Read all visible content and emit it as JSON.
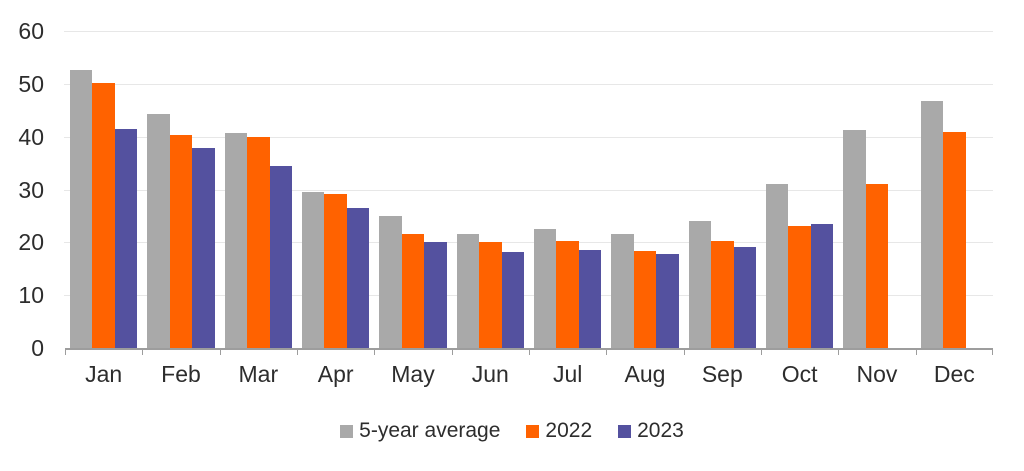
{
  "chart_data": {
    "type": "bar",
    "title": "",
    "categories": [
      "Jan",
      "Feb",
      "Mar",
      "Apr",
      "May",
      "Jun",
      "Jul",
      "Aug",
      "Sep",
      "Oct",
      "Nov",
      "Dec"
    ],
    "series": [
      {
        "name": "5-year average",
        "color": "#a9a9a9",
        "values": [
          52.6,
          44.2,
          40.7,
          29.6,
          24.9,
          21.6,
          22.6,
          21.5,
          24.0,
          31.0,
          41.3,
          46.8
        ]
      },
      {
        "name": "2022",
        "color": "#ff6200",
        "values": [
          50.2,
          40.4,
          40.0,
          29.1,
          21.6,
          20.0,
          20.3,
          18.3,
          20.3,
          23.0,
          31.0,
          40.8
        ]
      },
      {
        "name": "2023",
        "color": "#54519f",
        "values": [
          41.5,
          37.8,
          34.4,
          26.5,
          20.1,
          18.1,
          18.6,
          17.8,
          19.1,
          23.5,
          null,
          null
        ]
      }
    ],
    "y_axis": {
      "min": 0,
      "max": 60,
      "ticks": [
        0,
        10,
        20,
        30,
        40,
        50,
        60
      ]
    },
    "xlabel": "",
    "ylabel": "",
    "grid": "horizontal",
    "legend_position": "bottom"
  },
  "style_colors": {
    "grid": "#e7e7e7",
    "axis": "#9d9d9d",
    "text": "#2d2d2d",
    "background": "#ffffff"
  }
}
